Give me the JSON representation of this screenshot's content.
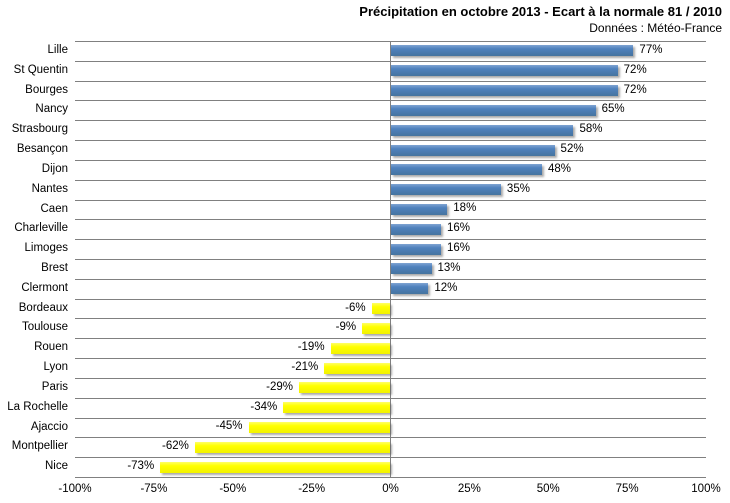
{
  "header": {
    "title": "Précipitation en octobre 2013 - Ecart à la normale 81 / 2010",
    "subtitle": "Données : Météo-France"
  },
  "colors": {
    "positive_bar": "#4F81BD",
    "negative_bar": "#FFFF00",
    "gridline": "#808080",
    "zero_axis_line": "#808080",
    "text": "#000000",
    "background": "#FFFFFF"
  },
  "chart_data": {
    "type": "bar",
    "orientation": "horizontal",
    "title": "Précipitation en octobre 2013 - Ecart à la normale 81 / 2010",
    "subtitle": "Données : Météo-France",
    "xlabel": "",
    "ylabel": "",
    "legend": "none",
    "grid": "horizontal category separators",
    "categories": [
      "Lille",
      "St Quentin",
      "Bourges",
      "Nancy",
      "Strasbourg",
      "Besançon",
      "Dijon",
      "Nantes",
      "Caen",
      "Charleville",
      "Limoges",
      "Brest",
      "Clermont",
      "Bordeaux",
      "Toulouse",
      "Rouen",
      "Lyon",
      "Paris",
      "La Rochelle",
      "Ajaccio",
      "Montpellier",
      "Nice"
    ],
    "values": [
      77,
      72,
      72,
      65,
      58,
      52,
      48,
      35,
      18,
      16,
      16,
      13,
      12,
      -6,
      -9,
      -19,
      -21,
      -29,
      -34,
      -45,
      -62,
      -73
    ],
    "value_labels": [
      "77%",
      "72%",
      "72%",
      "65%",
      "58%",
      "52%",
      "48%",
      "35%",
      "18%",
      "16%",
      "16%",
      "13%",
      "12%",
      "-6%",
      "-9%",
      "-19%",
      "-21%",
      "-29%",
      "-34%",
      "-45%",
      "-62%",
      "-73%"
    ],
    "x_axis": {
      "min": -100,
      "max": 100,
      "tick_step": 25,
      "ticks": [
        "-100%",
        "-75%",
        "-50%",
        "-25%",
        "0%",
        "25%",
        "50%",
        "75%",
        "100%"
      ]
    }
  }
}
